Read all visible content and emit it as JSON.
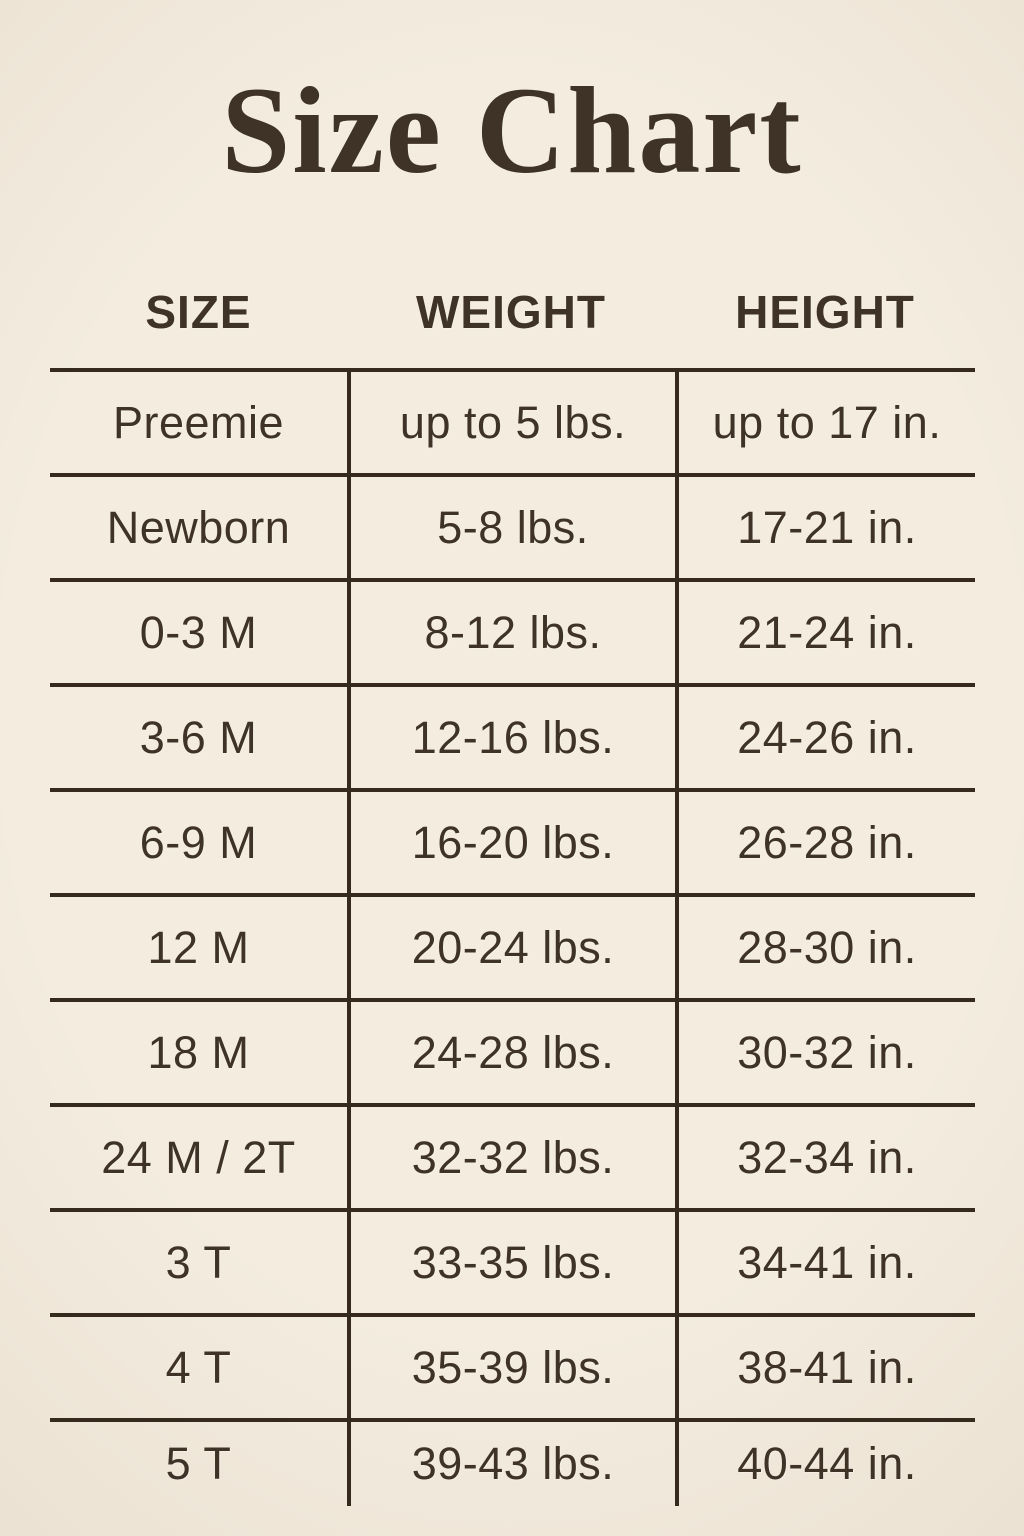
{
  "page": {
    "background_color": "#f3ecdf",
    "ink_color": "#3f3226",
    "rule_color": "#36291d"
  },
  "chart_data": {
    "type": "table",
    "title": "Size Chart",
    "columns": [
      "SIZE",
      "WEIGHT",
      "HEIGHT"
    ],
    "rows": [
      [
        "Preemie",
        "up to 5 lbs.",
        "up to 17 in."
      ],
      [
        "Newborn",
        "5-8 lbs.",
        "17-21 in."
      ],
      [
        "0-3 M",
        "8-12 lbs.",
        "21-24 in."
      ],
      [
        "3-6 M",
        "12-16 lbs.",
        "24-26 in."
      ],
      [
        "6-9 M",
        "16-20 lbs.",
        "26-28 in."
      ],
      [
        "12 M",
        "20-24 lbs.",
        "28-30 in."
      ],
      [
        "18 M",
        "24-28 lbs.",
        "30-32 in."
      ],
      [
        "24 M / 2T",
        "32-32 lbs.",
        "32-34 in."
      ],
      [
        "3 T",
        "33-35 lbs.",
        "34-41 in."
      ],
      [
        "4 T",
        "35-39 lbs.",
        "38-41 in."
      ],
      [
        "5 T",
        "39-43 lbs.",
        "40-44 in."
      ]
    ],
    "layout": {
      "grid": "horizontal rules between rows and top rule; two internal vertical dividers; no outer left/right/bottom frame"
    }
  }
}
